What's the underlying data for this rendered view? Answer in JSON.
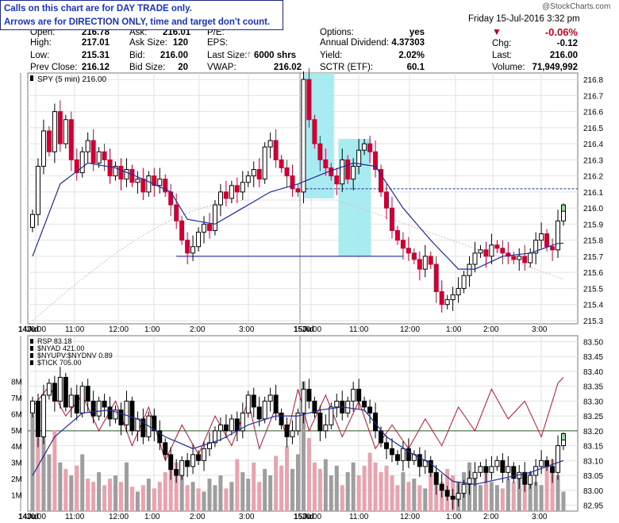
{
  "notice": {
    "line1": "Calls on this chart are for DAY TRADE only.",
    "line2": "Arrows are for DIRECTION ONLY, time and target don't count."
  },
  "header": {
    "open_label": "Open:",
    "open_value": "216.78",
    "high_label": "High:",
    "high_value": "217.01",
    "low_label": "Low:",
    "low_value": "215.31",
    "prev_close_label": "Prev Close:",
    "prev_close_value": "216.12",
    "ask_label": "Ask:",
    "ask_value": "216.01",
    "ask_size_label": "Ask Size:",
    "ask_size_value": "120",
    "bid_label": "Bid:",
    "bid_value": "216.00",
    "bid_size_label": "Bid Size:",
    "bid_size_value": "20",
    "pe_label": "P/E:",
    "eps_label": "EPS:",
    "last_size_label": "Last Size:",
    "last_size_value": "6000 shrs",
    "vwap_label": "VWAP:",
    "vwap_value": "216.02",
    "options_label": "Options:",
    "options_value": "yes",
    "dividend_label": "Annual Dividend:",
    "dividend_value": "4.37303",
    "yield_label": "Yield:",
    "yield_value": "2.02%",
    "sctr_label": "SCTR (ETF):",
    "sctr_value": "60.1",
    "date": "Friday  15-Jul-2016  3:32 pm",
    "pct_change": "-0.06%",
    "chg_label": "Chg:",
    "chg_value": "-0.12",
    "last_label": "Last:",
    "last_value": "216.00",
    "volume_label": "Volume:",
    "volume_value": "71,949,992",
    "watermark": "@StockCharts.com"
  },
  "colors": {
    "up_candle": "#000000",
    "down_candle": "#cc0033",
    "moving_average": "#1f2aa0",
    "highlight": "#9fe9ef",
    "rsp_line": "#c8102e",
    "volume_up": "#9e9e9e",
    "volume_down": "#e9a3ad",
    "level_line": "#1f2aa0"
  },
  "chart_data": [
    {
      "type": "candlestick",
      "legend": "SPY (5 min) 216.00",
      "y_ticks": [
        "216.8",
        "216.7",
        "216.6",
        "216.5",
        "216.4",
        "216.3",
        "216.2",
        "216.1",
        "216.0",
        "215.9",
        "215.8",
        "215.7",
        "215.6",
        "215.5",
        "215.4",
        "215.3"
      ],
      "ylim": [
        215.28,
        216.84
      ],
      "x_tick_labels": [
        "14Jul",
        "10:00",
        "11:00",
        "12:00",
        "1:00",
        "2:00",
        "3:00",
        "15Jul",
        "10:00",
        "11:00",
        "12:00",
        "1:00",
        "2:00",
        "3:00"
      ],
      "close_path": [
        [
          0,
          215.96
        ],
        [
          1,
          216.26
        ],
        [
          2,
          216.48
        ],
        [
          3,
          216.35
        ],
        [
          4,
          216.6
        ],
        [
          5,
          216.4
        ],
        [
          6,
          216.55
        ],
        [
          7,
          216.3
        ],
        [
          8,
          216.22
        ],
        [
          9,
          216.35
        ],
        [
          10,
          216.42
        ],
        [
          11,
          216.28
        ],
        [
          12,
          216.35
        ],
        [
          13,
          216.3
        ],
        [
          14,
          216.2
        ],
        [
          15,
          216.26
        ],
        [
          16,
          216.18
        ],
        [
          17,
          216.24
        ],
        [
          18,
          216.16
        ],
        [
          19,
          216.18
        ],
        [
          20,
          216.1
        ],
        [
          21,
          216.2
        ],
        [
          22,
          216.14
        ],
        [
          23,
          216.18
        ],
        [
          24,
          216.1
        ],
        [
          25,
          216.02
        ],
        [
          26,
          215.92
        ],
        [
          27,
          215.8
        ],
        [
          28,
          215.72
        ],
        [
          29,
          215.76
        ],
        [
          30,
          215.85
        ],
        [
          31,
          215.9
        ],
        [
          32,
          215.86
        ],
        [
          33,
          216.02
        ],
        [
          34,
          216.1
        ],
        [
          35,
          216.06
        ],
        [
          36,
          216.14
        ],
        [
          37,
          216.1
        ],
        [
          38,
          216.16
        ],
        [
          39,
          216.2
        ],
        [
          40,
          216.24
        ],
        [
          41,
          216.18
        ],
        [
          42,
          216.38
        ],
        [
          43,
          216.42
        ],
        [
          44,
          216.3
        ],
        [
          45,
          216.25
        ],
        [
          46,
          216.2
        ],
        [
          47,
          216.12
        ],
        [
          48,
          216.1
        ],
        [
          49,
          216.8
        ],
        [
          50,
          216.55
        ],
        [
          51,
          216.4
        ],
        [
          52,
          216.3
        ],
        [
          53,
          216.25
        ],
        [
          54,
          216.2
        ],
        [
          55,
          216.15
        ],
        [
          56,
          216.3
        ],
        [
          57,
          216.18
        ],
        [
          58,
          216.26
        ],
        [
          59,
          216.36
        ],
        [
          60,
          216.4
        ],
        [
          61,
          216.35
        ],
        [
          62,
          216.24
        ],
        [
          63,
          216.1
        ],
        [
          64,
          216.0
        ],
        [
          65,
          215.86
        ],
        [
          66,
          215.8
        ],
        [
          67,
          215.75
        ],
        [
          68,
          215.72
        ],
        [
          69,
          215.68
        ],
        [
          70,
          215.62
        ],
        [
          71,
          215.7
        ],
        [
          72,
          215.65
        ],
        [
          73,
          215.48
        ],
        [
          74,
          215.4
        ],
        [
          75,
          215.43
        ],
        [
          76,
          215.46
        ],
        [
          77,
          215.5
        ],
        [
          78,
          215.58
        ],
        [
          79,
          215.65
        ],
        [
          80,
          215.72
        ],
        [
          81,
          215.74
        ],
        [
          82,
          215.7
        ],
        [
          83,
          215.77
        ],
        [
          84,
          215.75
        ],
        [
          85,
          215.72
        ],
        [
          86,
          215.7
        ],
        [
          87,
          215.68
        ],
        [
          88,
          215.7
        ],
        [
          89,
          215.66
        ],
        [
          90,
          215.72
        ],
        [
          91,
          215.8
        ],
        [
          92,
          215.84
        ],
        [
          93,
          215.76
        ],
        [
          94,
          215.74
        ],
        [
          95,
          215.92
        ],
        [
          96,
          216.0
        ]
      ],
      "moving_average": [
        [
          0,
          215.7
        ],
        [
          5,
          216.15
        ],
        [
          10,
          216.28
        ],
        [
          15,
          216.25
        ],
        [
          20,
          216.18
        ],
        [
          25,
          216.1
        ],
        [
          28,
          215.93
        ],
        [
          33,
          215.9
        ],
        [
          38,
          216.0
        ],
        [
          43,
          216.1
        ],
        [
          48,
          216.15
        ],
        [
          53,
          216.22
        ],
        [
          58,
          216.28
        ],
        [
          62,
          216.26
        ],
        [
          67,
          216.0
        ],
        [
          72,
          215.8
        ],
        [
          77,
          215.62
        ],
        [
          80,
          215.62
        ],
        [
          85,
          215.7
        ],
        [
          90,
          215.72
        ],
        [
          95,
          215.78
        ]
      ],
      "highlight_zones": [
        {
          "from": 49,
          "to": 54.5,
          "low": 216.06,
          "high": 216.84
        },
        {
          "from": 55.3,
          "to": 61.2,
          "low": 215.7,
          "high": 216.43
        }
      ],
      "reference_line": {
        "value": 216.12,
        "from": 48,
        "to": 98
      },
      "support_line": {
        "value": 215.7,
        "from": 26,
        "to": 67
      }
    },
    {
      "type": "candlestick_with_volume",
      "legends": [
        "RSP 83.18",
        "$NYAD 421.00",
        "$NYUPV:$NYDNV 0.89",
        "$TICK 705.00"
      ],
      "y_ticks": [
        "83.50",
        "83.45",
        "83.40",
        "83.35",
        "83.30",
        "83.25",
        "83.20",
        "83.15",
        "83.10",
        "83.05",
        "83.00",
        "82.95"
      ],
      "ylim": [
        82.93,
        83.52
      ],
      "volume_ticks": [
        "8M",
        "7M",
        "6M",
        "5M",
        "4M",
        "3M",
        "2M",
        "1M"
      ],
      "volume_max": 9,
      "x_tick_labels": [
        "14Jul",
        "10:00",
        "11:00",
        "12:00",
        "1:00",
        "2:00",
        "3:00",
        "15Jul",
        "10:00",
        "11:00",
        "12:00",
        "1:00",
        "2:00",
        "3:00"
      ],
      "level_line": 83.2,
      "close_path": [
        [
          0,
          83.3
        ],
        [
          1,
          83.18
        ],
        [
          2,
          83.32
        ],
        [
          3,
          83.36
        ],
        [
          4,
          83.3
        ],
        [
          5,
          83.38
        ],
        [
          6,
          83.28
        ],
        [
          7,
          83.32
        ],
        [
          8,
          83.26
        ],
        [
          9,
          83.35
        ],
        [
          10,
          83.3
        ],
        [
          11,
          83.25
        ],
        [
          12,
          83.3
        ],
        [
          13,
          83.28
        ],
        [
          14,
          83.24
        ],
        [
          15,
          83.27
        ],
        [
          16,
          83.22
        ],
        [
          17,
          83.3
        ],
        [
          18,
          83.2
        ],
        [
          19,
          83.24
        ],
        [
          20,
          83.18
        ],
        [
          21,
          83.25
        ],
        [
          22,
          83.2
        ],
        [
          23,
          83.16
        ],
        [
          24,
          83.12
        ],
        [
          25,
          83.07
        ],
        [
          26,
          83.05
        ],
        [
          27,
          83.1
        ],
        [
          28,
          83.08
        ],
        [
          29,
          83.12
        ],
        [
          30,
          83.1
        ],
        [
          31,
          83.14
        ],
        [
          32,
          83.16
        ],
        [
          33,
          83.2
        ],
        [
          34,
          83.22
        ],
        [
          35,
          83.2
        ],
        [
          36,
          83.24
        ],
        [
          37,
          83.2
        ],
        [
          38,
          83.26
        ],
        [
          39,
          83.32
        ],
        [
          40,
          83.28
        ],
        [
          41,
          83.24
        ],
        [
          42,
          83.3
        ],
        [
          43,
          83.32
        ],
        [
          44,
          83.26
        ],
        [
          45,
          83.22
        ],
        [
          46,
          83.18
        ],
        [
          47,
          83.2
        ],
        [
          48,
          83.26
        ],
        [
          49,
          83.34
        ],
        [
          50,
          83.3
        ],
        [
          51,
          83.26
        ],
        [
          52,
          83.2
        ],
        [
          53,
          83.22
        ],
        [
          54,
          83.28
        ],
        [
          55,
          83.3
        ],
        [
          56,
          83.26
        ],
        [
          57,
          83.3
        ],
        [
          58,
          83.34
        ],
        [
          59,
          83.3
        ],
        [
          60,
          83.28
        ],
        [
          61,
          83.26
        ],
        [
          62,
          83.2
        ],
        [
          63,
          83.16
        ],
        [
          64,
          83.14
        ],
        [
          65,
          83.12
        ],
        [
          66,
          83.1
        ],
        [
          67,
          83.14
        ],
        [
          68,
          83.1
        ],
        [
          69,
          83.12
        ],
        [
          70,
          83.08
        ],
        [
          71,
          83.1
        ],
        [
          72,
          83.06
        ],
        [
          73,
          83.02
        ],
        [
          74,
          83.0
        ],
        [
          75,
          82.98
        ],
        [
          76,
          82.97
        ],
        [
          77,
          82.99
        ],
        [
          78,
          83.02
        ],
        [
          79,
          83.04
        ],
        [
          80,
          83.06
        ],
        [
          81,
          83.08
        ],
        [
          82,
          83.06
        ],
        [
          83,
          83.08
        ],
        [
          84,
          83.1
        ],
        [
          85,
          83.06
        ],
        [
          86,
          83.08
        ],
        [
          87,
          83.04
        ],
        [
          88,
          83.06
        ],
        [
          89,
          83.02
        ],
        [
          90,
          83.05
        ],
        [
          91,
          83.08
        ],
        [
          92,
          83.1
        ],
        [
          93,
          83.08
        ],
        [
          94,
          83.06
        ],
        [
          95,
          83.15
        ],
        [
          96,
          83.18
        ]
      ],
      "moving_average": [
        [
          0,
          83.05
        ],
        [
          4,
          83.18
        ],
        [
          9,
          83.26
        ],
        [
          14,
          83.27
        ],
        [
          19,
          83.24
        ],
        [
          24,
          83.18
        ],
        [
          29,
          83.14
        ],
        [
          34,
          83.17
        ],
        [
          39,
          83.22
        ],
        [
          44,
          83.25
        ],
        [
          48,
          83.25
        ],
        [
          52,
          83.27
        ],
        [
          56,
          83.28
        ],
        [
          60,
          83.27
        ],
        [
          64,
          83.18
        ],
        [
          68,
          83.13
        ],
        [
          72,
          83.09
        ],
        [
          76,
          83.03
        ],
        [
          80,
          83.02
        ],
        [
          85,
          83.04
        ],
        [
          90,
          83.06
        ],
        [
          96,
          83.1
        ]
      ],
      "rsp_line": [
        [
          0,
          83.28
        ],
        [
          3,
          83.35
        ],
        [
          6,
          83.25
        ],
        [
          9,
          83.32
        ],
        [
          12,
          83.2
        ],
        [
          15,
          83.3
        ],
        [
          18,
          83.15
        ],
        [
          21,
          83.28
        ],
        [
          24,
          83.1
        ],
        [
          27,
          83.22
        ],
        [
          30,
          83.12
        ],
        [
          33,
          83.25
        ],
        [
          36,
          83.15
        ],
        [
          39,
          83.3
        ],
        [
          41,
          83.14
        ],
        [
          44,
          83.28
        ],
        [
          46,
          83.18
        ],
        [
          48,
          83.34
        ],
        [
          50,
          83.2
        ],
        [
          53,
          83.32
        ],
        [
          56,
          83.18
        ],
        [
          59,
          83.3
        ],
        [
          62,
          83.14
        ],
        [
          65,
          83.22
        ],
        [
          68,
          83.14
        ],
        [
          71,
          83.24
        ],
        [
          74,
          83.15
        ],
        [
          77,
          83.28
        ],
        [
          80,
          83.2
        ],
        [
          83,
          83.34
        ],
        [
          86,
          83.24
        ],
        [
          89,
          83.3
        ],
        [
          92,
          83.18
        ],
        [
          95,
          83.36
        ],
        [
          96,
          83.38
        ]
      ],
      "volume": [
        6,
        4.5,
        7,
        3.5,
        5,
        3,
        2.6,
        2.2,
        2.8,
        3.5,
        2,
        1.8,
        2.4,
        1.6,
        2,
        2.2,
        1.8,
        3,
        1.5,
        1.2,
        1.6,
        2,
        1.4,
        1.8,
        2.4,
        2.8,
        3,
        2.2,
        1.6,
        1.8,
        1.4,
        1.2,
        2,
        1.6,
        2.2,
        1.4,
        1.8,
        3.2,
        2.4,
        2,
        3,
        1.8,
        2.6,
        2.2,
        3.4,
        2.8,
        4,
        2.6,
        3.5,
        8,
        4.5,
        3,
        2.6,
        3.2,
        2.2,
        2.8,
        1.6,
        2.4,
        3,
        2.2,
        2.8,
        3.6,
        3,
        2.4,
        2.8,
        2.2,
        1.6,
        2.4,
        1.8,
        2,
        1.6,
        1.4,
        2.4,
        2,
        1.8,
        2.6,
        2.2,
        1.8,
        2.4,
        3,
        2.2,
        1.6,
        2.4,
        1.8,
        1.6,
        1.4,
        2,
        1.8,
        2.2,
        1.6,
        2.4,
        1.8,
        1.6,
        2.8,
        3.2,
        2.2,
        1.2
      ]
    }
  ]
}
